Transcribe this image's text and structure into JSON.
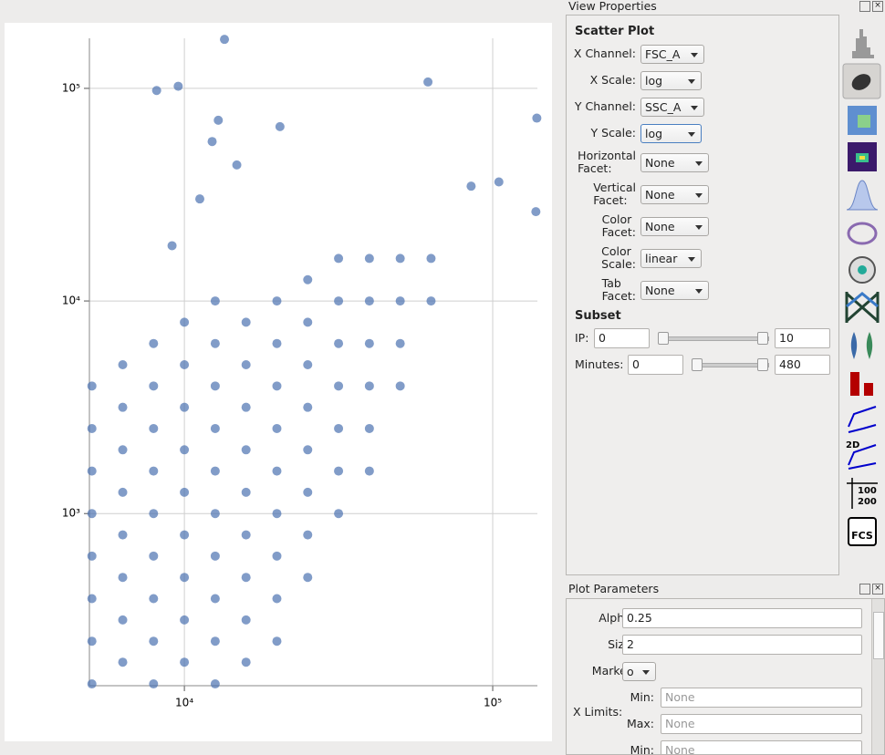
{
  "chart_data": {
    "type": "scatter",
    "xscale": "log",
    "yscale": "log",
    "grid": true,
    "color": "#4c72b0",
    "xlim": [
      4920,
      139600
    ],
    "ylim": [
      155,
      172000
    ],
    "xticks": [
      {
        "value": 10000,
        "label": "10⁴"
      },
      {
        "value": 100000,
        "label": "10⁵"
      }
    ],
    "yticks": [
      {
        "value": 1000,
        "label": "10³"
      },
      {
        "value": 10000,
        "label": "10⁴"
      },
      {
        "value": 100000,
        "label": "10⁵"
      }
    ],
    "x": [
      5012,
      5012,
      5012,
      5012,
      5012,
      5012,
      5012,
      5012,
      6310,
      6310,
      6310,
      6310,
      6310,
      6310,
      6310,
      6310,
      7943,
      7943,
      7943,
      7943,
      7943,
      7943,
      7943,
      7943,
      7943,
      10000,
      10000,
      10000,
      10000,
      10000,
      10000,
      10000,
      10000,
      10000,
      12589,
      12589,
      12589,
      12589,
      12589,
      12589,
      12589,
      12589,
      12589,
      12589,
      15849,
      15849,
      15849,
      15849,
      15849,
      15849,
      15849,
      15849,
      15849,
      19953,
      19953,
      19953,
      19953,
      19953,
      19953,
      19953,
      19953,
      19953,
      25119,
      25119,
      25119,
      25119,
      25119,
      25119,
      25119,
      25119,
      31623,
      31623,
      31623,
      31623,
      31623,
      31623,
      31623,
      39811,
      39811,
      39811,
      39811,
      39811,
      39811,
      50119,
      50119,
      50119,
      50119,
      63096,
      63096,
      8128,
      9550,
      61660,
      13490,
      12882,
      20417,
      12303,
      14791,
      104713,
      85114,
      138038,
      139000,
      11220,
      9120
    ],
    "y": [
      158,
      251,
      398,
      631,
      1000,
      1585,
      2512,
      3981,
      200,
      316,
      501,
      794,
      1259,
      1995,
      3162,
      5012,
      158,
      251,
      398,
      631,
      1000,
      1585,
      2512,
      3981,
      6310,
      200,
      316,
      501,
      794,
      1259,
      1995,
      3162,
      5012,
      7943,
      158,
      251,
      398,
      631,
      1000,
      1585,
      2512,
      3981,
      6310,
      10000,
      200,
      316,
      501,
      794,
      1259,
      1995,
      3162,
      5012,
      7943,
      251,
      398,
      631,
      1000,
      1585,
      2512,
      3981,
      6310,
      10000,
      501,
      794,
      1259,
      1995,
      3162,
      5012,
      7943,
      12589,
      1000,
      1585,
      2512,
      3981,
      6310,
      10000,
      15849,
      1585,
      2512,
      3981,
      6310,
      10000,
      15849,
      3981,
      6310,
      10000,
      15849,
      10000,
      15849,
      97724,
      102329,
      107152,
      170000,
      70795,
      66069,
      56234,
      43652,
      36308,
      34674,
      26303,
      72444,
      30200,
      18197
    ]
  },
  "view_properties": {
    "title": "View Properties",
    "heading": "Scatter Plot",
    "fields": [
      {
        "label": "X Channel:",
        "value": "FSC_A"
      },
      {
        "label": "X Scale:",
        "value": "log"
      },
      {
        "label": "Y Channel:",
        "value": "SSC_A"
      },
      {
        "label": "Y Scale:",
        "value": "log"
      },
      {
        "label": "Horizontal Facet:",
        "value": "None"
      },
      {
        "label": "Vertical Facet:",
        "value": "None"
      },
      {
        "label": "Color Facet:",
        "value": "None"
      },
      {
        "label": "Color Scale:",
        "value": "linear"
      },
      {
        "label": "Tab Facet:",
        "value": "None"
      }
    ],
    "subset": {
      "heading": "Subset",
      "rows": [
        {
          "label": "IP:",
          "min": 0,
          "max": 10
        },
        {
          "label": "Minutes:",
          "min": 0,
          "max": 480
        }
      ]
    }
  },
  "toolbar": {
    "label_2d": "2D",
    "table_labels": [
      "100",
      "200"
    ],
    "save_label": "FCS"
  },
  "plot_parameters": {
    "title": "Plot Parameters",
    "rows": [
      {
        "label": "Alpha:",
        "value": "0.25"
      },
      {
        "label": "Size:",
        "value": "2"
      },
      {
        "label": "Marker:",
        "value": "o"
      }
    ],
    "x_limits": {
      "label": "X Limits:",
      "min_label": "Min:",
      "max_label": "Max:",
      "placeholder": "None"
    },
    "y_limits": {
      "min_label": "Min:",
      "placeholder": "None"
    }
  }
}
